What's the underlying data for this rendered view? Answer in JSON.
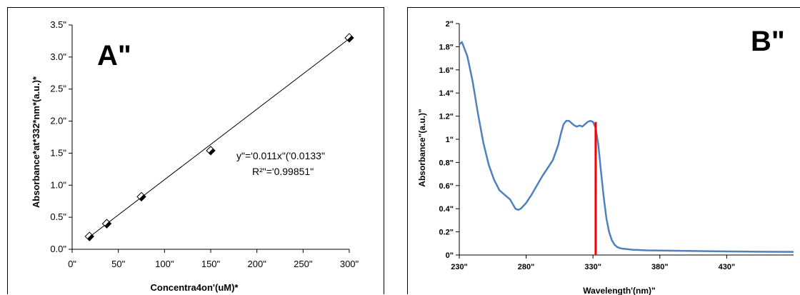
{
  "chart_data": [
    {
      "type": "scatter",
      "panel_label": "A\"",
      "xlabel": "Concentra4on'(uM)*",
      "ylabel": "Absorbance*at*332*nm*(a.u.)*",
      "xlim": [
        0,
        300
      ],
      "ylim": [
        0,
        3.5
      ],
      "x_ticks": [
        0,
        50,
        100,
        150,
        200,
        250,
        300
      ],
      "x_tick_labels": [
        "0\"",
        "50\"",
        "100\"",
        "150\"",
        "200\"",
        "250\"",
        "300\""
      ],
      "y_ticks": [
        0,
        0.5,
        1.0,
        1.5,
        2.0,
        2.5,
        3.0,
        3.5
      ],
      "y_tick_labels": [
        "0.0\"",
        "0.5\"",
        "1.0\"",
        "1.5\"",
        "2.0\"",
        "2.5\"",
        "3.0\"",
        "3.5\""
      ],
      "grid": false,
      "series": [
        {
          "x": [
            18.75,
            37.5,
            75,
            150,
            300
          ],
          "y": [
            0.2,
            0.4,
            0.82,
            1.54,
            3.3
          ]
        }
      ],
      "trendline": {
        "slope": 0.011,
        "intercept": -0.0133
      },
      "annotations": [
        "y\"='0.011x\"('0.0133\"",
        "R²\"='0.99851\""
      ]
    },
    {
      "type": "line",
      "panel_label": "B\"",
      "xlabel": "Wavelength'(nm)\"",
      "ylabel": "Absorbance\"(a.u.)\"",
      "xlim": [
        230,
        480
      ],
      "ylim": [
        0,
        2
      ],
      "x_ticks": [
        230,
        280,
        330,
        380,
        430
      ],
      "x_tick_labels": [
        "230\"",
        "280\"",
        "330\"",
        "380\"",
        "430\""
      ],
      "y_ticks": [
        0,
        0.2,
        0.4,
        0.6,
        0.8,
        1,
        1.2,
        1.4,
        1.6,
        1.8,
        2
      ],
      "y_tick_labels": [
        "0\"",
        "0.2\"",
        "0.4\"",
        "0.6\"",
        "0.8\"",
        "1\"",
        "1.2\"",
        "1.4\"",
        "1.6\"",
        "1.8\"",
        "2\""
      ],
      "grid": false,
      "series": [
        {
          "color": "#4f81bd",
          "x": [
            230,
            232,
            236,
            240,
            244,
            248,
            252,
            256,
            260,
            264,
            268,
            270,
            272,
            274,
            276,
            280,
            284,
            288,
            292,
            296,
            300,
            304,
            306,
            308,
            310,
            312,
            314,
            316,
            318,
            320,
            322,
            324,
            326,
            328,
            330,
            332,
            334,
            336,
            338,
            340,
            342,
            344,
            346,
            348,
            350,
            352,
            356,
            360,
            370,
            380,
            400,
            420,
            440,
            460,
            480
          ],
          "y": [
            1.82,
            1.84,
            1.72,
            1.5,
            1.22,
            0.97,
            0.78,
            0.65,
            0.56,
            0.52,
            0.48,
            0.44,
            0.4,
            0.39,
            0.4,
            0.45,
            0.52,
            0.6,
            0.68,
            0.75,
            0.82,
            0.95,
            1.05,
            1.13,
            1.16,
            1.16,
            1.14,
            1.12,
            1.11,
            1.12,
            1.11,
            1.13,
            1.15,
            1.16,
            1.15,
            1.1,
            0.95,
            0.72,
            0.5,
            0.32,
            0.2,
            0.13,
            0.09,
            0.07,
            0.06,
            0.055,
            0.05,
            0.045,
            0.04,
            0.038,
            0.035,
            0.032,
            0.03,
            0.028,
            0.027
          ]
        }
      ],
      "marker_line": {
        "x": 332,
        "y": 1.15,
        "color": "#ff0000"
      }
    }
  ]
}
